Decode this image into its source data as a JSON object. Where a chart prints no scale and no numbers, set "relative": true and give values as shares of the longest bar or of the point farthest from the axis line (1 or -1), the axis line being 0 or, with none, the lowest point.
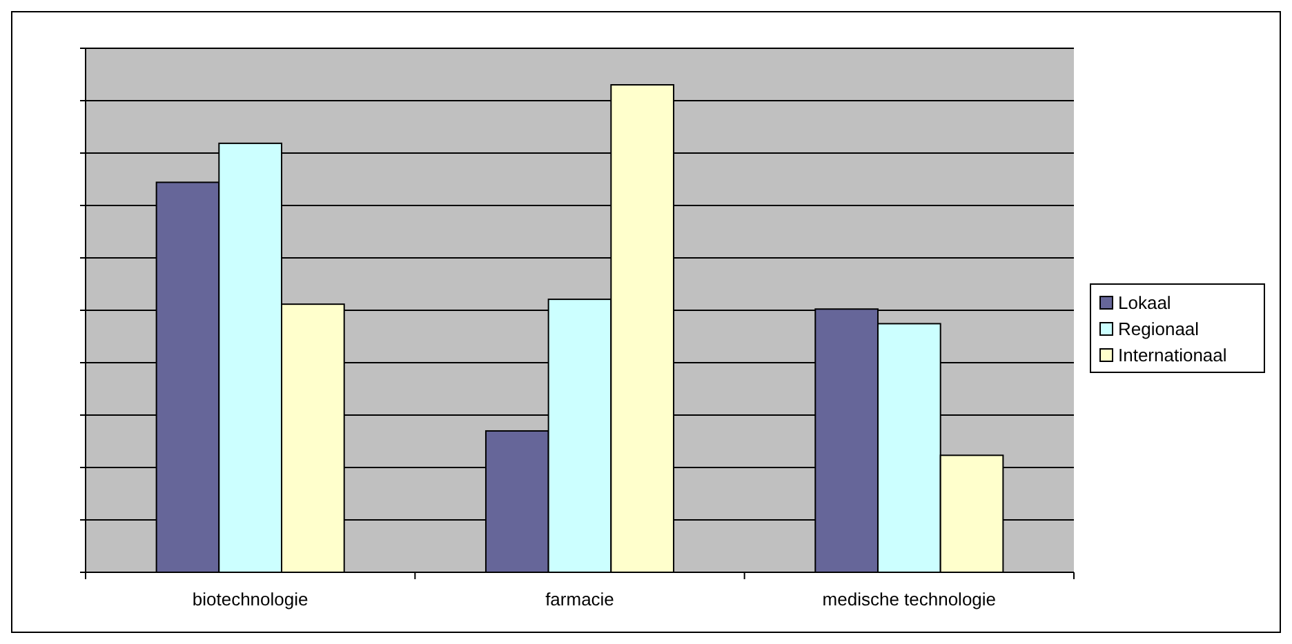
{
  "chart_data": {
    "type": "bar",
    "relative": true,
    "categories": [
      "biotechnologie",
      "farmacie",
      "medische technologie"
    ],
    "series": [
      {
        "name": "Lokaal",
        "color": "#666699",
        "values": [
          0.8,
          0.29,
          0.54
        ]
      },
      {
        "name": "Regionaal",
        "color": "#ccffff",
        "values": [
          0.88,
          0.56,
          0.51
        ]
      },
      {
        "name": "Internationaal",
        "color": "#ffffcc",
        "values": [
          0.55,
          1,
          0.24
        ]
      }
    ],
    "grid": "y",
    "legend": "right"
  }
}
